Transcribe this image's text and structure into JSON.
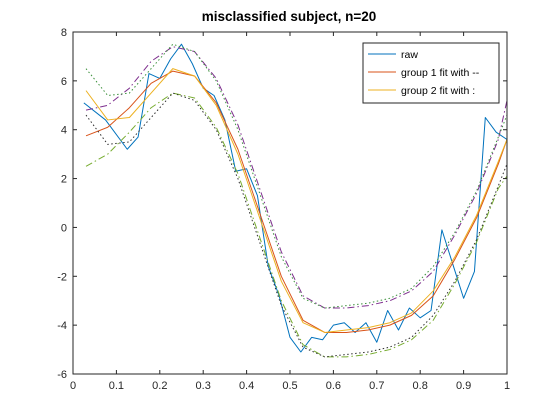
{
  "chart_data": {
    "type": "line",
    "title": "misclassified subject, n=20",
    "xlabel": "",
    "ylabel": "",
    "xlim": [
      0,
      1
    ],
    "ylim": [
      -6,
      8
    ],
    "xticks": [
      0,
      0.1,
      0.2,
      0.3,
      0.4,
      0.5,
      0.6,
      0.7,
      0.8,
      0.9,
      1
    ],
    "xtick_labels": [
      "0",
      "0.1",
      "0.2",
      "0.3",
      "0.4",
      "0.5",
      "0.6",
      "0.7",
      "0.8",
      "0.9",
      "1"
    ],
    "yticks": [
      -6,
      -4,
      -2,
      0,
      2,
      4,
      6,
      8
    ],
    "ytick_labels": [
      "-6",
      "-4",
      "-2",
      "0",
      "2",
      "4",
      "6",
      "8"
    ],
    "grid": false,
    "legend_position": "top-right",
    "series": [
      {
        "name": "raw",
        "color": "#0072BD",
        "style": "solid",
        "in_legend": true,
        "x": [
          0.025,
          0.075,
          0.125,
          0.15,
          0.175,
          0.2,
          0.225,
          0.25,
          0.275,
          0.3,
          0.325,
          0.35,
          0.375,
          0.4,
          0.425,
          0.45,
          0.475,
          0.5,
          0.525,
          0.55,
          0.575,
          0.6,
          0.625,
          0.65,
          0.675,
          0.7,
          0.725,
          0.75,
          0.775,
          0.8,
          0.825,
          0.85,
          0.875,
          0.9,
          0.925,
          0.95,
          0.975,
          1.0
        ],
        "y": [
          5.1,
          4.4,
          3.2,
          3.7,
          6.3,
          6.1,
          6.9,
          7.5,
          6.7,
          5.7,
          5.4,
          4.4,
          2.3,
          2.4,
          1.3,
          -1.6,
          -2.8,
          -4.5,
          -5.1,
          -4.5,
          -4.6,
          -4.0,
          -3.9,
          -4.3,
          -3.9,
          -4.7,
          -3.4,
          -4.2,
          -3.3,
          -3.7,
          -3.4,
          -0.1,
          -1.5,
          -2.9,
          -1.8,
          4.5,
          3.9,
          3.6
        ]
      },
      {
        "name": "group 1 fit with --",
        "color": "#D95319",
        "style": "solid",
        "in_legend": true,
        "x": [
          0.03,
          0.08,
          0.13,
          0.18,
          0.23,
          0.28,
          0.33,
          0.38,
          0.43,
          0.48,
          0.53,
          0.58,
          0.63,
          0.68,
          0.73,
          0.78,
          0.83,
          0.88,
          0.93,
          0.98,
          1.0
        ],
        "y": [
          3.75,
          4.1,
          4.9,
          5.9,
          6.4,
          6.2,
          5.1,
          3.2,
          0.6,
          -2.0,
          -3.8,
          -4.3,
          -4.3,
          -4.2,
          -4.0,
          -3.6,
          -2.8,
          -1.3,
          0.4,
          2.6,
          3.6
        ]
      },
      {
        "name": "group 2 fit with :",
        "color": "#EDB120",
        "style": "solid",
        "in_legend": true,
        "x": [
          0.03,
          0.08,
          0.13,
          0.18,
          0.23,
          0.28,
          0.33,
          0.38,
          0.43,
          0.48,
          0.53,
          0.58,
          0.63,
          0.68,
          0.73,
          0.78,
          0.83,
          0.88,
          0.93,
          0.98,
          1.0
        ],
        "y": [
          5.6,
          4.4,
          4.5,
          5.5,
          6.5,
          6.2,
          5.0,
          3.0,
          0.4,
          -2.2,
          -3.9,
          -4.3,
          -4.2,
          -4.1,
          -3.9,
          -3.5,
          -2.6,
          -1.2,
          0.5,
          2.7,
          3.6
        ]
      },
      {
        "name": "",
        "color": "#7E2F8E",
        "style": "dashdot",
        "in_legend": false,
        "x": [
          0.03,
          0.08,
          0.13,
          0.18,
          0.23,
          0.28,
          0.33,
          0.38,
          0.43,
          0.48,
          0.53,
          0.58,
          0.63,
          0.68,
          0.73,
          0.78,
          0.83,
          0.88,
          0.93,
          0.98,
          1.0
        ],
        "y": [
          4.8,
          5.0,
          5.7,
          6.8,
          7.4,
          7.2,
          6.1,
          4.2,
          1.6,
          -1.0,
          -2.8,
          -3.3,
          -3.3,
          -3.2,
          -3.0,
          -2.6,
          -1.8,
          -0.3,
          1.4,
          3.6,
          5.2
        ]
      },
      {
        "name": "",
        "color": "#77AC30",
        "style": "dashdot",
        "in_legend": false,
        "x": [
          0.03,
          0.08,
          0.13,
          0.18,
          0.23,
          0.28,
          0.33,
          0.38,
          0.43,
          0.48,
          0.53,
          0.58,
          0.63,
          0.68,
          0.73,
          0.78,
          0.83,
          0.88,
          0.93,
          0.98,
          1.0
        ],
        "y": [
          2.5,
          3.0,
          3.9,
          4.9,
          5.5,
          5.3,
          4.1,
          2.2,
          -0.4,
          -3.0,
          -4.8,
          -5.3,
          -5.3,
          -5.2,
          -5.0,
          -4.6,
          -3.8,
          -2.3,
          -0.6,
          1.6,
          2.1
        ]
      },
      {
        "name": "",
        "color": "#3A8F3A",
        "style": "dotted",
        "in_legend": false,
        "x": [
          0.03,
          0.08,
          0.13,
          0.18,
          0.23,
          0.28,
          0.33,
          0.38,
          0.43,
          0.48,
          0.53,
          0.58,
          0.63,
          0.68,
          0.73,
          0.78,
          0.83,
          0.88,
          0.93,
          0.98,
          1.0
        ],
        "y": [
          6.5,
          5.4,
          5.5,
          6.5,
          7.5,
          7.2,
          6.0,
          4.0,
          1.4,
          -1.2,
          -2.9,
          -3.3,
          -3.2,
          -3.1,
          -2.9,
          -2.5,
          -1.6,
          -0.2,
          1.5,
          3.7,
          4.6
        ]
      },
      {
        "name": "",
        "color": "#2F2F2F",
        "style": "dotted",
        "in_legend": false,
        "x": [
          0.03,
          0.08,
          0.13,
          0.18,
          0.23,
          0.28,
          0.33,
          0.38,
          0.43,
          0.48,
          0.53,
          0.58,
          0.63,
          0.68,
          0.73,
          0.78,
          0.83,
          0.88,
          0.93,
          0.98,
          1.0
        ],
        "y": [
          4.6,
          3.4,
          3.5,
          4.5,
          5.5,
          5.2,
          4.0,
          2.0,
          -0.6,
          -3.2,
          -4.9,
          -5.3,
          -5.2,
          -5.1,
          -4.9,
          -4.5,
          -3.6,
          -2.2,
          -0.5,
          1.7,
          2.6
        ]
      }
    ]
  }
}
